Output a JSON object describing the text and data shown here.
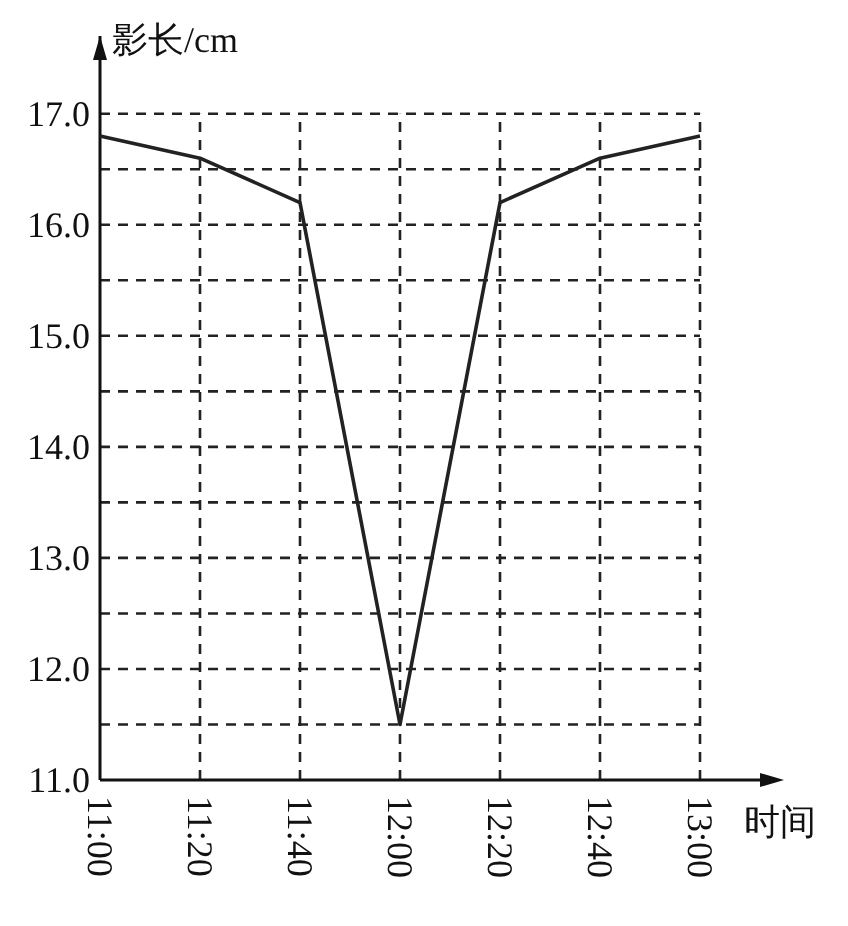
{
  "chart_data": {
    "type": "line",
    "xlabel": "时间",
    "ylabel": "影长/cm",
    "categories": [
      "11:00",
      "11:20",
      "11:40",
      "12:00",
      "12:20",
      "12:40",
      "13:00"
    ],
    "values": [
      16.8,
      16.6,
      16.2,
      11.5,
      16.2,
      16.6,
      16.8
    ],
    "color": "#222222",
    "ylim": [
      11,
      17.7
    ],
    "yticks": [
      {
        "value": 11,
        "label": "11.0"
      },
      {
        "value": 11.5,
        "label": null
      },
      {
        "value": 12,
        "label": "12.0"
      },
      {
        "value": 12.5,
        "label": null
      },
      {
        "value": 13,
        "label": "13.0"
      },
      {
        "value": 13.5,
        "label": null
      },
      {
        "value": 14,
        "label": "14.0"
      },
      {
        "value": 14.5,
        "label": null
      },
      {
        "value": 15,
        "label": "15.0"
      },
      {
        "value": 15.5,
        "label": null
      },
      {
        "value": 16,
        "label": "16.0"
      },
      {
        "value": 16.5,
        "label": null
      },
      {
        "value": 17,
        "label": "17.0"
      }
    ],
    "grid": true,
    "marker": "none",
    "line_style": "solid"
  }
}
